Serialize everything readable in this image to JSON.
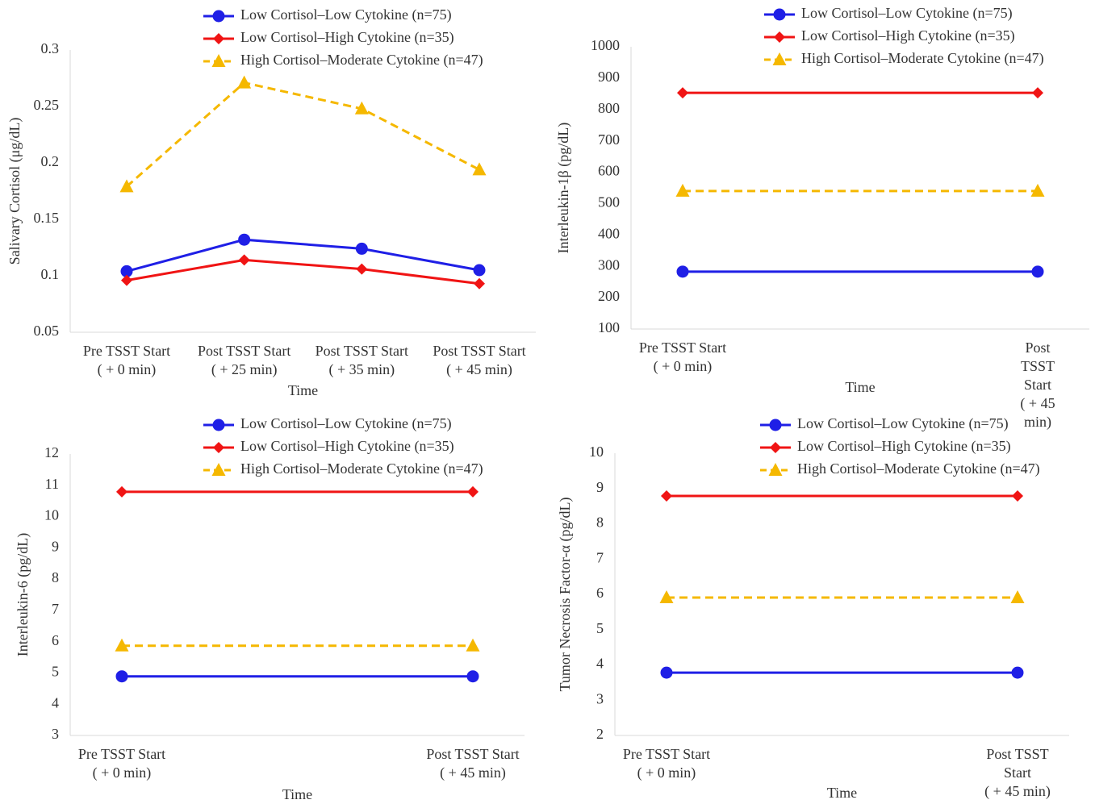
{
  "chart_data": [
    {
      "type": "line",
      "y_label": "Salivary Cortisol (μg/dL)",
      "x_label": "Time",
      "categories": [
        "Pre TSST Start\n( + 0 min)",
        "Post TSST Start\n( + 25 min)",
        "Post TSST Start\n( + 35 min)",
        "Post TSST Start\n( + 45 min)"
      ],
      "ylim": [
        0.05,
        0.3
      ],
      "yticks": [
        0.05,
        0.1,
        0.15,
        0.2,
        0.25,
        0.3
      ],
      "grid": false,
      "series": [
        {
          "name": "Low Cortisol–Low Cytokine (n=75)",
          "color": "#1f1fe6",
          "marker": "circle",
          "dashed": false,
          "values": [
            0.104,
            0.132,
            0.124,
            0.105
          ]
        },
        {
          "name": "Low Cortisol–High Cytokine (n=35)",
          "color": "#f01414",
          "marker": "diamond",
          "dashed": false,
          "values": [
            0.096,
            0.114,
            0.106,
            0.093
          ]
        },
        {
          "name": "High Cortisol–Moderate Cytokine (n=47)",
          "color": "#f5b800",
          "marker": "triangle",
          "dashed": true,
          "values": [
            0.179,
            0.271,
            0.248,
            0.194
          ]
        }
      ]
    },
    {
      "type": "line",
      "y_label": "Interleukin-1β (pg/dL)",
      "x_label": "Time",
      "categories": [
        "Pre TSST Start\n( + 0 min)",
        "Post TSST Start\n( + 45 min)"
      ],
      "ylim": [
        100,
        1000
      ],
      "yticks": [
        100,
        200,
        300,
        400,
        500,
        600,
        700,
        800,
        900,
        1000
      ],
      "grid": false,
      "series": [
        {
          "name": "Low Cortisol–Low Cytokine (n=75)",
          "color": "#1f1fe6",
          "marker": "circle",
          "dashed": false,
          "values": [
            283,
            283
          ]
        },
        {
          "name": "Low Cortisol–High Cytokine (n=35)",
          "color": "#f01414",
          "marker": "diamond",
          "dashed": false,
          "values": [
            853,
            853
          ]
        },
        {
          "name": "High Cortisol–Moderate Cytokine (n=47)",
          "color": "#f5b800",
          "marker": "triangle",
          "dashed": true,
          "values": [
            540,
            540
          ]
        }
      ]
    },
    {
      "type": "line",
      "y_label": "Interleukin-6 (pg/dL)",
      "x_label": "Time",
      "categories": [
        "Pre TSST Start\n( + 0 min)",
        "Post TSST Start\n( + 45 min)"
      ],
      "ylim": [
        3,
        12
      ],
      "yticks": [
        3,
        4,
        5,
        6,
        7,
        8,
        9,
        10,
        11,
        12
      ],
      "grid": false,
      "series": [
        {
          "name": "Low Cortisol–Low Cytokine (n=75)",
          "color": "#1f1fe6",
          "marker": "circle",
          "dashed": false,
          "values": [
            4.89,
            4.89
          ]
        },
        {
          "name": "Low Cortisol–High Cytokine (n=35)",
          "color": "#f01414",
          "marker": "diamond",
          "dashed": false,
          "values": [
            10.79,
            10.79
          ]
        },
        {
          "name": "High Cortisol–Moderate Cytokine (n=47)",
          "color": "#f5b800",
          "marker": "triangle",
          "dashed": true,
          "values": [
            5.87,
            5.87
          ]
        }
      ]
    },
    {
      "type": "line",
      "y_label": "Tumor Necrosis Factor-α (pg/dL)",
      "x_label": "Time",
      "categories": [
        "Pre TSST Start\n( + 0 min)",
        "Post TSST Start\n( + 45 min)"
      ],
      "ylim": [
        2,
        10
      ],
      "yticks": [
        2,
        3,
        4,
        5,
        6,
        7,
        8,
        9,
        10
      ],
      "grid": false,
      "series": [
        {
          "name": "Low Cortisol–Low Cytokine (n=75)",
          "color": "#1f1fe6",
          "marker": "circle",
          "dashed": false,
          "values": [
            3.78,
            3.78
          ]
        },
        {
          "name": "Low Cortisol–High Cytokine (n=35)",
          "color": "#f01414",
          "marker": "diamond",
          "dashed": false,
          "values": [
            8.79,
            8.79
          ]
        },
        {
          "name": "High Cortisol–Moderate Cytokine (n=47)",
          "color": "#f5b800",
          "marker": "triangle",
          "dashed": true,
          "values": [
            5.91,
            5.91
          ]
        }
      ]
    }
  ]
}
